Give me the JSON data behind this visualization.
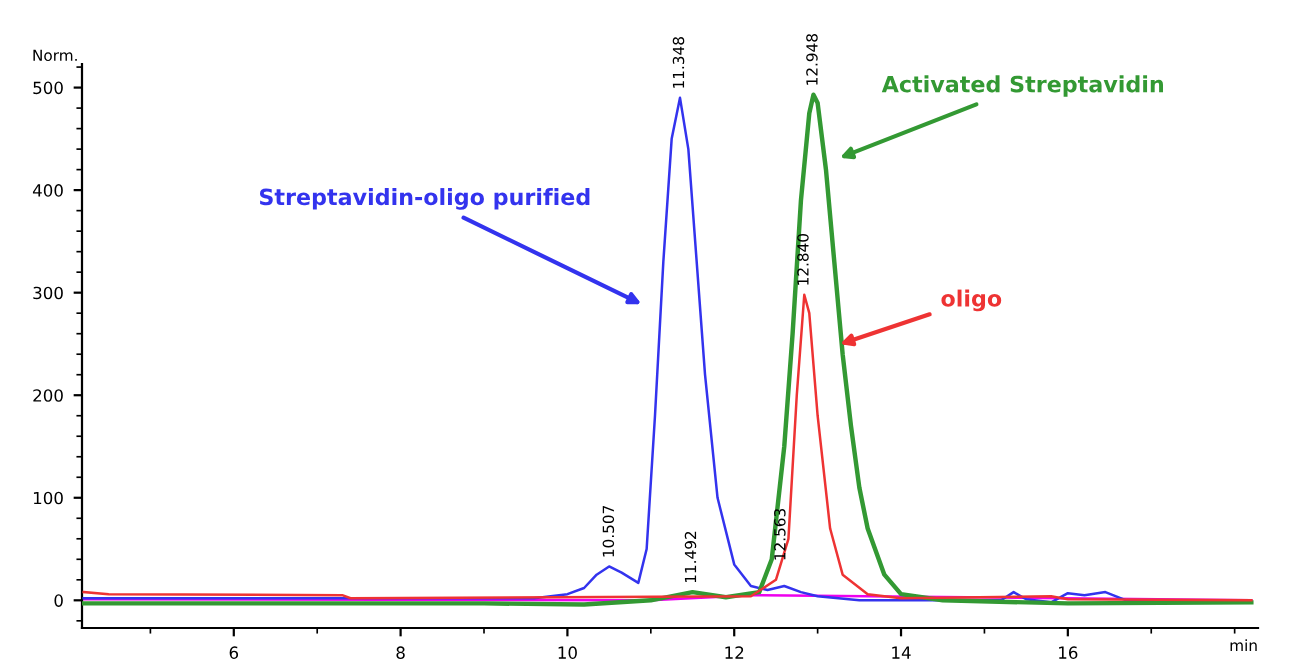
{
  "chart_data": {
    "type": "line",
    "xlabel": "min",
    "ylabel": "Norm.",
    "xlim": [
      4.18,
      18.28
    ],
    "ylim": [
      -27,
      523
    ],
    "xticks": [
      6,
      8,
      10,
      12,
      14,
      16
    ],
    "yticks": [
      0,
      100,
      200,
      300,
      400,
      500
    ],
    "grid": false,
    "marker": "none",
    "line_style": "solid",
    "series": [
      {
        "name": "Streptavidin-oligo purified",
        "color": "#3333ee",
        "x": [
          4.2,
          9.6,
          9.8,
          10.0,
          10.2,
          10.35,
          10.5,
          10.65,
          10.85,
          10.95,
          11.05,
          11.15,
          11.25,
          11.35,
          11.45,
          11.55,
          11.65,
          11.8,
          12.0,
          12.2,
          12.4,
          12.6,
          12.8,
          13.0,
          13.5,
          15.2,
          15.35,
          15.5,
          15.8,
          16.0,
          16.2,
          16.45,
          16.7,
          18.2
        ],
        "values": [
          2,
          2,
          4,
          6,
          12,
          25,
          33,
          27,
          17,
          50,
          180,
          330,
          450,
          490,
          440,
          330,
          220,
          100,
          35,
          14,
          10,
          14,
          8,
          4,
          0,
          0,
          8,
          1,
          -2,
          7,
          5,
          8,
          0,
          -2
        ]
      },
      {
        "name": "Activated Streptavidin",
        "color": "#339933",
        "x": [
          4.2,
          9.0,
          10.2,
          11.0,
          11.5,
          11.9,
          12.3,
          12.45,
          12.6,
          12.7,
          12.8,
          12.9,
          12.95,
          13.0,
          13.1,
          13.2,
          13.3,
          13.4,
          13.5,
          13.6,
          13.8,
          14.0,
          14.5,
          16.0,
          18.2
        ],
        "values": [
          -3,
          -3,
          -4,
          0,
          8,
          3,
          8,
          40,
          150,
          260,
          390,
          475,
          493,
          485,
          420,
          330,
          240,
          170,
          110,
          70,
          25,
          6,
          0,
          -3,
          -2
        ]
      },
      {
        "name": "oligo",
        "color": "#ee3333",
        "x": [
          4.2,
          4.5,
          7.3,
          7.4,
          12.2,
          12.5,
          12.65,
          12.75,
          12.84,
          12.9,
          13.0,
          13.15,
          13.3,
          13.6,
          14.0,
          15.8,
          16.0,
          18.2
        ],
        "values": [
          8,
          6,
          5,
          2,
          4,
          20,
          60,
          200,
          298,
          280,
          180,
          70,
          25,
          6,
          2,
          4,
          1,
          0
        ]
      },
      {
        "color": "#ee00ee",
        "x": [
          4.2,
          11.0,
          12.2,
          13.6,
          18.2
        ],
        "values": [
          1,
          0,
          5,
          4,
          0
        ]
      }
    ],
    "annotations": [
      {
        "text": "10.507",
        "x": 10.507,
        "y": 33
      },
      {
        "text": "11.348",
        "x": 11.348,
        "y": 490
      },
      {
        "text": "11.492",
        "x": 11.492,
        "y": 8
      },
      {
        "text": "12.563",
        "x": 12.563,
        "y": 30
      },
      {
        "text": "12.840",
        "x": 12.84,
        "y": 298
      },
      {
        "text": "12.948",
        "x": 12.948,
        "y": 493
      }
    ]
  }
}
